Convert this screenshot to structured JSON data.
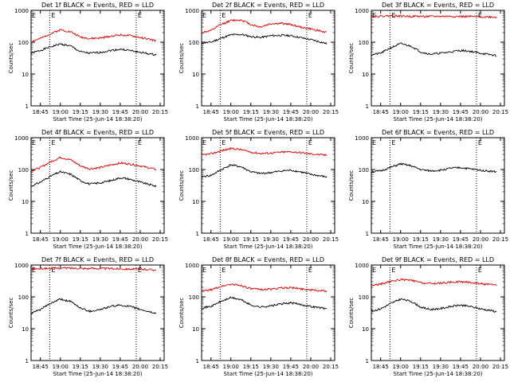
{
  "figure": {
    "colors": {
      "background": "#ffffff",
      "frame": "#000000",
      "events": "#000000",
      "lld": "#dd0000",
      "marker": "#000000"
    },
    "yscale": "log",
    "ylim": [
      1,
      1000
    ],
    "yticks": [
      "1",
      "10",
      "100",
      "1000"
    ],
    "xticks": [
      "18:45",
      "19:00",
      "19:15",
      "19:30",
      "19:45",
      "20:00",
      "20:15"
    ],
    "xlabel": "Start Time (25-Jun-14 18:38:20)",
    "ylabel": "Counts/sec",
    "marker_labels": [
      "E",
      "E"
    ]
  },
  "chart_data": [
    {
      "type": "line",
      "title": "Det 1f BLACK = Events, RED = LLD",
      "xlabel": "Start Time (25-Jun-14 18:38:20)",
      "ylabel": "Counts/sec",
      "ylim": [
        1,
        1000
      ],
      "yscale": "log",
      "markers": [
        "18:52",
        "19:57"
      ],
      "x": [
        "18:38",
        "18:45",
        "18:52",
        "19:00",
        "19:08",
        "19:15",
        "19:22",
        "19:30",
        "19:38",
        "19:45",
        "19:52",
        "20:00",
        "20:08",
        "20:12"
      ],
      "series": [
        {
          "name": "Events",
          "values": [
            45,
            55,
            70,
            88,
            75,
            50,
            45,
            48,
            55,
            60,
            55,
            48,
            42,
            40
          ]
        },
        {
          "name": "LLD",
          "values": [
            105,
            130,
            180,
            245,
            210,
            145,
            130,
            135,
            155,
            170,
            160,
            140,
            120,
            110
          ]
        }
      ]
    },
    {
      "type": "line",
      "title": "Det 2f BLACK = Events, RED = LLD",
      "xlabel": "Start Time (25-Jun-14 18:38:20)",
      "ylabel": "Counts/sec",
      "ylim": [
        1,
        1000
      ],
      "yscale": "log",
      "markers": [
        "18:52",
        "19:57"
      ],
      "x": [
        "18:38",
        "18:45",
        "18:52",
        "19:00",
        "19:08",
        "19:15",
        "19:22",
        "19:30",
        "19:38",
        "19:45",
        "19:52",
        "20:00",
        "20:08",
        "20:12"
      ],
      "series": [
        {
          "name": "Events",
          "values": [
            95,
            100,
            130,
            170,
            175,
            150,
            140,
            160,
            165,
            160,
            140,
            120,
            100,
            90
          ]
        },
        {
          "name": "LLD",
          "values": [
            200,
            230,
            350,
            480,
            500,
            360,
            300,
            380,
            390,
            360,
            300,
            260,
            220,
            200
          ]
        }
      ]
    },
    {
      "type": "line",
      "title": "Det 3f BLACK = Events, RED = LLD",
      "xlabel": "Start Time (25-Jun-14 18:38:20)",
      "ylabel": "Counts/sec",
      "ylim": [
        1,
        1000
      ],
      "yscale": "log",
      "markers": [
        "18:52",
        "19:57"
      ],
      "x": [
        "18:38",
        "18:45",
        "18:52",
        "19:00",
        "19:08",
        "19:15",
        "19:22",
        "19:30",
        "19:38",
        "19:45",
        "19:52",
        "20:00",
        "20:08",
        "20:12"
      ],
      "series": [
        {
          "name": "Events",
          "values": [
            40,
            45,
            65,
            90,
            75,
            50,
            42,
            45,
            50,
            55,
            52,
            45,
            40,
            38
          ]
        },
        {
          "name": "LLD",
          "values": [
            650,
            660,
            670,
            660,
            650,
            650,
            640,
            650,
            650,
            640,
            640,
            630,
            620,
            610
          ]
        }
      ]
    },
    {
      "type": "line",
      "title": "Det 4f BLACK = Events, RED = LLD",
      "xlabel": "Start Time (25-Jun-14 18:38:20)",
      "ylabel": "Counts/sec",
      "ylim": [
        1,
        1000
      ],
      "yscale": "log",
      "markers": [
        "18:52",
        "19:57"
      ],
      "x": [
        "18:38",
        "18:45",
        "18:52",
        "19:00",
        "19:08",
        "19:15",
        "19:22",
        "19:30",
        "19:38",
        "19:45",
        "19:52",
        "20:00",
        "20:08",
        "20:12"
      ],
      "series": [
        {
          "name": "Events",
          "values": [
            30,
            40,
            60,
            85,
            70,
            45,
            35,
            38,
            45,
            55,
            50,
            40,
            33,
            30
          ]
        },
        {
          "name": "LLD",
          "values": [
            90,
            115,
            170,
            240,
            200,
            130,
            105,
            115,
            140,
            160,
            150,
            130,
            110,
            100
          ]
        }
      ]
    },
    {
      "type": "line",
      "title": "Det 5f BLACK = Events, RED = LLD",
      "xlabel": "Start Time (25-Jun-14 18:38:20)",
      "ylabel": "Counts/sec",
      "ylim": [
        1,
        1000
      ],
      "yscale": "log",
      "markers": [
        "18:52",
        "19:57"
      ],
      "x": [
        "18:38",
        "18:45",
        "18:52",
        "19:00",
        "19:08",
        "19:15",
        "19:22",
        "19:30",
        "19:38",
        "19:45",
        "19:52",
        "20:00",
        "20:08",
        "20:12"
      ],
      "series": [
        {
          "name": "Events",
          "values": [
            60,
            65,
            95,
            140,
            120,
            85,
            75,
            80,
            90,
            95,
            85,
            70,
            62,
            58
          ]
        },
        {
          "name": "LLD",
          "values": [
            290,
            310,
            380,
            460,
            420,
            350,
            320,
            330,
            350,
            360,
            340,
            310,
            290,
            280
          ]
        }
      ]
    },
    {
      "type": "line",
      "title": "Det 6f BLACK = Events, RED = LLD",
      "xlabel": "Start Time (25-Jun-14 18:38:20)",
      "ylabel": "Counts/sec",
      "ylim": [
        1,
        1000
      ],
      "yscale": "log",
      "markers": [
        "18:52",
        "19:57"
      ],
      "x": [
        "18:38",
        "18:45",
        "18:52",
        "19:00",
        "19:08",
        "19:15",
        "19:22",
        "19:30",
        "19:38",
        "19:45",
        "19:52",
        "20:00",
        "20:08",
        "20:12"
      ],
      "series": [
        {
          "name": "Events",
          "values": [
            85,
            90,
            115,
            150,
            130,
            100,
            90,
            95,
            110,
            115,
            105,
            95,
            88,
            85
          ]
        }
      ]
    },
    {
      "type": "line",
      "title": "Det 7f BLACK = Events, RED = LLD",
      "xlabel": "Start Time (25-Jun-14 18:38:20)",
      "ylabel": "Counts/sec",
      "ylim": [
        1,
        1000
      ],
      "yscale": "log",
      "markers": [
        "18:52",
        "19:57"
      ],
      "x": [
        "18:38",
        "18:45",
        "18:52",
        "19:00",
        "19:08",
        "19:15",
        "19:22",
        "19:30",
        "19:38",
        "19:45",
        "19:52",
        "20:00",
        "20:08",
        "20:12"
      ],
      "series": [
        {
          "name": "Events",
          "values": [
            30,
            40,
            60,
            85,
            70,
            45,
            35,
            40,
            50,
            55,
            50,
            40,
            33,
            30
          ]
        },
        {
          "name": "LLD",
          "values": [
            750,
            770,
            790,
            800,
            800,
            790,
            780,
            780,
            770,
            760,
            750,
            740,
            720,
            700
          ]
        }
      ]
    },
    {
      "type": "line",
      "title": "Det 8f BLACK = Events, RED = LLD",
      "xlabel": "Start Time (25-Jun-14 18:38:20)",
      "ylabel": "Counts/sec",
      "ylim": [
        1,
        1000
      ],
      "yscale": "log",
      "markers": [
        "18:52",
        "19:57"
      ],
      "x": [
        "18:38",
        "18:45",
        "18:52",
        "19:00",
        "19:08",
        "19:15",
        "19:22",
        "19:30",
        "19:38",
        "19:45",
        "19:52",
        "20:00",
        "20:08",
        "20:12"
      ],
      "series": [
        {
          "name": "Events",
          "values": [
            45,
            50,
            70,
            95,
            80,
            55,
            48,
            52,
            60,
            65,
            58,
            50,
            45,
            42
          ]
        },
        {
          "name": "LLD",
          "values": [
            150,
            165,
            210,
            250,
            225,
            180,
            170,
            175,
            190,
            195,
            180,
            165,
            155,
            150
          ]
        }
      ]
    },
    {
      "type": "line",
      "title": "Det 9f BLACK = Events, RED = LLD",
      "xlabel": "Start Time (25-Jun-14 18:38:20)",
      "ylabel": "Counts/sec",
      "ylim": [
        1,
        1000
      ],
      "yscale": "log",
      "markers": [
        "18:52",
        "19:57"
      ],
      "x": [
        "18:38",
        "18:45",
        "18:52",
        "19:00",
        "19:08",
        "19:15",
        "19:22",
        "19:30",
        "19:38",
        "19:45",
        "19:52",
        "20:00",
        "20:08",
        "20:12"
      ],
      "series": [
        {
          "name": "Events",
          "values": [
            35,
            42,
            60,
            85,
            72,
            48,
            40,
            43,
            50,
            55,
            50,
            42,
            37,
            34
          ]
        },
        {
          "name": "LLD",
          "values": [
            230,
            250,
            300,
            350,
            330,
            280,
            260,
            270,
            290,
            300,
            285,
            260,
            240,
            230
          ]
        }
      ]
    }
  ]
}
